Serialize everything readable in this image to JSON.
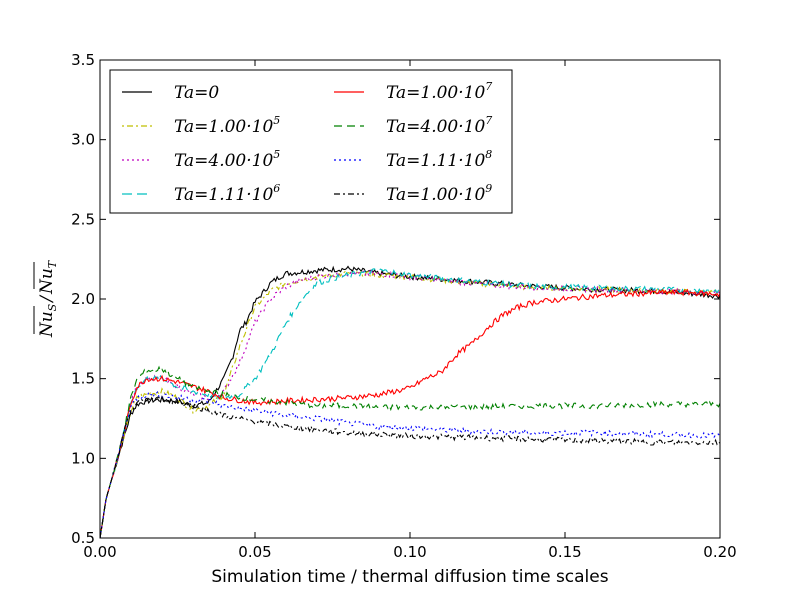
{
  "chart_data": {
    "type": "line",
    "title": "",
    "xlabel": "Simulation time / thermal diffusion time scales",
    "ylabel": "Nu_S / Nu_T",
    "ylabel_parts": {
      "num_base": "Nu",
      "num_sub": "S",
      "sep": "/",
      "den_base": "Nu",
      "den_sub": "T"
    },
    "xlim": [
      0.0,
      0.2
    ],
    "ylim": [
      0.5,
      3.5
    ],
    "x_ticks": [
      0.0,
      0.05,
      0.1,
      0.15,
      0.2
    ],
    "x_tick_labels": [
      "0.00",
      "0.05",
      "0.10",
      "0.15",
      "0.20"
    ],
    "y_ticks": [
      0.5,
      1.0,
      1.5,
      2.0,
      2.5,
      3.0,
      3.5
    ],
    "y_tick_labels": [
      "0.5",
      "1.0",
      "1.5",
      "2.0",
      "2.5",
      "3.0",
      "3.5"
    ],
    "grid": false,
    "legend_position": "top-left",
    "series": [
      {
        "name": "Ta=0",
        "label_base": "Ta=0",
        "label_exp": "",
        "color": "#000000",
        "dash": "",
        "x": [
          0.0,
          0.002,
          0.005,
          0.008,
          0.01,
          0.012,
          0.015,
          0.02,
          0.025,
          0.03,
          0.035,
          0.04,
          0.043,
          0.045,
          0.047,
          0.05,
          0.053,
          0.055,
          0.058,
          0.06,
          0.065,
          0.07,
          0.08,
          0.09,
          0.1,
          0.12,
          0.14,
          0.16,
          0.18,
          0.2
        ],
        "y": [
          0.5,
          0.75,
          0.95,
          1.15,
          1.28,
          1.34,
          1.36,
          1.37,
          1.36,
          1.33,
          1.35,
          1.5,
          1.65,
          1.8,
          1.85,
          1.98,
          2.05,
          2.1,
          2.14,
          2.16,
          2.17,
          2.18,
          2.19,
          2.16,
          2.14,
          2.11,
          2.08,
          2.06,
          2.05,
          2.02
        ]
      },
      {
        "name": "Ta=1.00·10^5",
        "label_base": "Ta=1.00·10",
        "label_exp": "5",
        "color": "#bfbf00",
        "dash": "2,3,6,3",
        "x": [
          0.0,
          0.002,
          0.005,
          0.008,
          0.01,
          0.012,
          0.015,
          0.02,
          0.025,
          0.03,
          0.035,
          0.04,
          0.045,
          0.05,
          0.055,
          0.06,
          0.065,
          0.07,
          0.08,
          0.09,
          0.1,
          0.12,
          0.14,
          0.16,
          0.18,
          0.2
        ],
        "y": [
          0.5,
          0.75,
          0.95,
          1.15,
          1.3,
          1.38,
          1.4,
          1.42,
          1.38,
          1.3,
          1.33,
          1.4,
          1.7,
          1.95,
          2.05,
          2.1,
          2.12,
          2.14,
          2.16,
          2.15,
          2.14,
          2.1,
          2.07,
          2.06,
          2.05,
          2.04
        ]
      },
      {
        "name": "Ta=4.00·10^5",
        "label_base": "Ta=4.00·10",
        "label_exp": "5",
        "color": "#bf00bf",
        "dash": "2,3",
        "x": [
          0.0,
          0.002,
          0.005,
          0.008,
          0.01,
          0.012,
          0.015,
          0.02,
          0.025,
          0.03,
          0.035,
          0.04,
          0.045,
          0.05,
          0.055,
          0.06,
          0.065,
          0.07,
          0.08,
          0.09,
          0.1,
          0.12,
          0.14,
          0.16,
          0.18,
          0.2
        ],
        "y": [
          0.5,
          0.75,
          0.95,
          1.18,
          1.35,
          1.45,
          1.5,
          1.5,
          1.45,
          1.4,
          1.38,
          1.42,
          1.6,
          1.85,
          2.0,
          2.08,
          2.12,
          2.14,
          2.16,
          2.16,
          2.14,
          2.1,
          2.07,
          2.06,
          2.05,
          2.04
        ]
      },
      {
        "name": "Ta=1.11·10^6",
        "label_base": "Ta=1.11·10",
        "label_exp": "6",
        "color": "#00bfbf",
        "dash": "10,5",
        "x": [
          0.0,
          0.002,
          0.005,
          0.008,
          0.01,
          0.012,
          0.015,
          0.02,
          0.025,
          0.03,
          0.035,
          0.04,
          0.045,
          0.05,
          0.055,
          0.06,
          0.065,
          0.07,
          0.075,
          0.08,
          0.09,
          0.1,
          0.12,
          0.14,
          0.16,
          0.18,
          0.2
        ],
        "y": [
          0.5,
          0.75,
          0.95,
          1.18,
          1.35,
          1.45,
          1.5,
          1.5,
          1.45,
          1.42,
          1.4,
          1.38,
          1.4,
          1.5,
          1.65,
          1.85,
          2.0,
          2.1,
          2.13,
          2.15,
          2.18,
          2.15,
          2.11,
          2.08,
          2.07,
          2.06,
          2.05
        ]
      },
      {
        "name": "Ta=1.00·10^7",
        "label_base": "Ta=1.00·10",
        "label_exp": "7",
        "color": "#ff0000",
        "dash": "",
        "x": [
          0.0,
          0.002,
          0.005,
          0.008,
          0.01,
          0.012,
          0.015,
          0.02,
          0.025,
          0.03,
          0.035,
          0.04,
          0.05,
          0.06,
          0.07,
          0.08,
          0.09,
          0.1,
          0.105,
          0.11,
          0.115,
          0.12,
          0.125,
          0.13,
          0.135,
          0.14,
          0.15,
          0.16,
          0.17,
          0.18,
          0.19,
          0.2
        ],
        "y": [
          0.5,
          0.75,
          0.95,
          1.18,
          1.35,
          1.45,
          1.5,
          1.5,
          1.48,
          1.45,
          1.42,
          1.38,
          1.35,
          1.36,
          1.37,
          1.38,
          1.4,
          1.44,
          1.5,
          1.54,
          1.65,
          1.72,
          1.82,
          1.9,
          1.95,
          1.98,
          2.0,
          2.02,
          2.03,
          2.04,
          2.04,
          2.03
        ]
      },
      {
        "name": "Ta=4.00·10^7",
        "label_base": "Ta=4.00·10",
        "label_exp": "7",
        "color": "#008000",
        "dash": "8,5",
        "x": [
          0.0,
          0.002,
          0.005,
          0.008,
          0.01,
          0.012,
          0.015,
          0.02,
          0.025,
          0.03,
          0.035,
          0.04,
          0.05,
          0.06,
          0.07,
          0.08,
          0.09,
          0.1,
          0.12,
          0.14,
          0.16,
          0.18,
          0.2
        ],
        "y": [
          0.5,
          0.75,
          0.95,
          1.2,
          1.38,
          1.5,
          1.55,
          1.56,
          1.5,
          1.45,
          1.42,
          1.4,
          1.37,
          1.35,
          1.33,
          1.33,
          1.32,
          1.32,
          1.32,
          1.33,
          1.33,
          1.34,
          1.34
        ]
      },
      {
        "name": "Ta=1.11·10^8",
        "label_base": "Ta=1.11·10",
        "label_exp": "8",
        "color": "#0000ff",
        "dash": "2,3",
        "x": [
          0.0,
          0.002,
          0.005,
          0.008,
          0.01,
          0.012,
          0.015,
          0.02,
          0.025,
          0.03,
          0.035,
          0.04,
          0.05,
          0.06,
          0.07,
          0.08,
          0.09,
          0.1,
          0.11,
          0.12,
          0.14,
          0.16,
          0.18,
          0.2
        ],
        "y": [
          0.5,
          0.75,
          0.95,
          1.18,
          1.33,
          1.38,
          1.4,
          1.4,
          1.38,
          1.37,
          1.36,
          1.33,
          1.3,
          1.27,
          1.25,
          1.22,
          1.2,
          1.19,
          1.18,
          1.17,
          1.16,
          1.16,
          1.15,
          1.14
        ]
      },
      {
        "name": "Ta=1.00·10^9",
        "label_base": "Ta=1.00·10",
        "label_exp": "9",
        "color": "#000000",
        "dash": "6,3,2,3",
        "x": [
          0.0,
          0.002,
          0.005,
          0.008,
          0.01,
          0.012,
          0.015,
          0.02,
          0.025,
          0.03,
          0.035,
          0.04,
          0.05,
          0.06,
          0.07,
          0.08,
          0.09,
          0.1,
          0.12,
          0.14,
          0.16,
          0.18,
          0.2
        ],
        "y": [
          0.5,
          0.75,
          0.95,
          1.18,
          1.3,
          1.35,
          1.37,
          1.37,
          1.35,
          1.33,
          1.3,
          1.27,
          1.23,
          1.2,
          1.18,
          1.16,
          1.15,
          1.14,
          1.13,
          1.12,
          1.11,
          1.1,
          1.1
        ]
      }
    ]
  }
}
